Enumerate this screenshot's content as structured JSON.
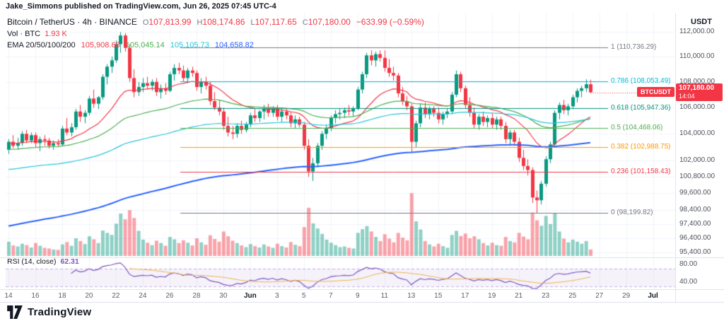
{
  "attribution": "Jake_Simmons published on TradingView.com, Jun 26, 2025 07:45 UTC-4",
  "legend": {
    "title": "Bitcoin / TetherUS · 4h · BINANCE",
    "o_label": "O",
    "o": "107,813.99",
    "h_label": "H",
    "h": "108,174.86",
    "l_label": "L",
    "l": "107,117.65",
    "c_label": "C",
    "c": "107,180.00",
    "change": "−633.99 (−0.59%)",
    "vol_label": "Vol · BTC",
    "vol_value": "1.93 K",
    "ema_label": "EMA 20/50/100/200",
    "ema_values": [
      "105,908.68",
      "105,045.14",
      "105,105.73",
      "104,658.82"
    ],
    "rsi_label": "RSI (14, close)",
    "rsi_value": "62.31"
  },
  "price_scale": {
    "currency": "USDT",
    "badge": {
      "symbol": "BTCUSDT",
      "price": "107,180.00",
      "countdown": "14:04"
    }
  },
  "footer": {
    "brand": "TradingView"
  },
  "colors": {
    "up": "#089981",
    "down": "#f23645",
    "vol_up": "rgba(8,153,129,0.45)",
    "vol_down": "rgba(242,54,69,0.45)",
    "grid": "#f0f3fa",
    "rsi_band": "rgba(126,87,194,0.08)",
    "rsi_band_line": "rgba(126,87,194,0.45)"
  },
  "chart_data": {
    "type": "candlestick",
    "title": "Bitcoin / TetherUS 4h BINANCE with volume, EMA 20/50/100/200, Fibonacci retracement and RSI(14)",
    "interval": "4h",
    "current_price": 107180,
    "current_countdown": "14:04",
    "candles": [
      [
        102800,
        103600,
        102500,
        103400,
        4.2
      ],
      [
        103400,
        103900,
        102900,
        103100,
        3.1
      ],
      [
        103100,
        103700,
        102800,
        103300,
        2.8
      ],
      [
        103300,
        104200,
        103100,
        104000,
        3.6
      ],
      [
        104000,
        104300,
        103300,
        103500,
        3.2
      ],
      [
        103500,
        104100,
        103300,
        103900,
        2.5
      ],
      [
        103900,
        104100,
        103000,
        103300,
        3.8
      ],
      [
        103300,
        103800,
        102700,
        103600,
        3.0
      ],
      [
        103600,
        103900,
        103100,
        103500,
        2.4
      ],
      [
        103500,
        103700,
        102900,
        103100,
        2.2
      ],
      [
        103100,
        103500,
        102800,
        103300,
        1.9
      ],
      [
        103300,
        103600,
        103000,
        103200,
        1.8
      ],
      [
        103200,
        104600,
        103100,
        104400,
        3.4
      ],
      [
        104400,
        105200,
        103900,
        104100,
        4.1
      ],
      [
        104100,
        104800,
        103800,
        104500,
        3.0
      ],
      [
        104500,
        105900,
        104300,
        105700,
        5.2
      ],
      [
        105700,
        106200,
        104900,
        105300,
        4.4
      ],
      [
        105300,
        105800,
        104800,
        105600,
        3.5
      ],
      [
        105600,
        106900,
        105400,
        106700,
        5.8
      ],
      [
        106700,
        107400,
        106000,
        106300,
        4.9
      ],
      [
        106300,
        106900,
        105900,
        106800,
        3.8
      ],
      [
        106800,
        108600,
        106600,
        108400,
        7.5
      ],
      [
        108400,
        109400,
        107800,
        109200,
        6.8
      ],
      [
        109200,
        110000,
        108700,
        109700,
        6.2
      ],
      [
        109700,
        111300,
        109500,
        111000,
        9.5
      ],
      [
        111000,
        111980,
        110300,
        111700,
        12.5
      ],
      [
        111700,
        111900,
        110400,
        110700,
        10.8
      ],
      [
        110700,
        111000,
        108000,
        108300,
        13.5
      ],
      [
        108300,
        109000,
        106800,
        107200,
        11.2
      ],
      [
        107200,
        108000,
        106900,
        107600,
        7.4
      ],
      [
        107600,
        108300,
        107200,
        107900,
        4.8
      ],
      [
        107900,
        108400,
        107400,
        107700,
        3.9
      ],
      [
        107700,
        108200,
        107300,
        108000,
        3.2
      ],
      [
        108000,
        108300,
        106900,
        107200,
        4.5
      ],
      [
        107200,
        107800,
        106700,
        107500,
        3.8
      ],
      [
        107500,
        107900,
        107000,
        107300,
        3.0
      ],
      [
        107300,
        108800,
        107200,
        108600,
        5.6
      ],
      [
        108600,
        109400,
        108100,
        109100,
        4.9
      ],
      [
        109100,
        109500,
        108600,
        108900,
        3.8
      ],
      [
        108900,
        109300,
        108000,
        108300,
        4.6
      ],
      [
        108300,
        109100,
        107900,
        108900,
        3.9
      ],
      [
        108900,
        109200,
        108400,
        108700,
        3.1
      ],
      [
        108700,
        108900,
        107300,
        107600,
        5.2
      ],
      [
        107600,
        108300,
        107100,
        108000,
        4.0
      ],
      [
        108000,
        108400,
        107400,
        107700,
        3.3
      ],
      [
        107700,
        108000,
        106200,
        106500,
        6.1
      ],
      [
        106500,
        107200,
        105800,
        106000,
        5.0
      ],
      [
        106000,
        106600,
        105400,
        105700,
        4.2
      ],
      [
        105700,
        106000,
        104300,
        104600,
        7.2
      ],
      [
        104600,
        105300,
        103800,
        104100,
        5.8
      ],
      [
        104100,
        104600,
        103600,
        104000,
        4.5
      ],
      [
        104000,
        104800,
        103700,
        104600,
        3.8
      ],
      [
        104600,
        105000,
        104000,
        104300,
        3.1
      ],
      [
        104300,
        104900,
        104100,
        104700,
        2.6
      ],
      [
        104700,
        105600,
        104500,
        105400,
        3.5
      ],
      [
        105400,
        105900,
        104900,
        105200,
        2.9
      ],
      [
        105200,
        105800,
        104900,
        105700,
        2.5
      ],
      [
        105700,
        106200,
        105100,
        105900,
        3.4
      ],
      [
        105900,
        106300,
        105300,
        105600,
        2.8
      ],
      [
        105600,
        106100,
        105300,
        105900,
        2.4
      ],
      [
        105900,
        106200,
        105000,
        105300,
        3.6
      ],
      [
        105300,
        105900,
        104900,
        105700,
        2.9
      ],
      [
        105700,
        105900,
        105100,
        105400,
        2.5
      ],
      [
        105400,
        105700,
        104500,
        104800,
        4.1
      ],
      [
        104800,
        105400,
        104400,
        105100,
        3.3
      ],
      [
        105100,
        105300,
        104500,
        104700,
        2.9
      ],
      [
        104700,
        104900,
        102800,
        103100,
        8.5
      ],
      [
        103100,
        103600,
        100800,
        101200,
        14.2
      ],
      [
        101200,
        102200,
        100500,
        101800,
        9.6
      ],
      [
        101800,
        103300,
        101500,
        103100,
        8.1
      ],
      [
        103100,
        104200,
        102800,
        104000,
        6.5
      ],
      [
        104000,
        104700,
        103600,
        104400,
        4.8
      ],
      [
        104400,
        105400,
        104200,
        105200,
        3.9
      ],
      [
        105200,
        105800,
        104800,
        105500,
        3.2
      ],
      [
        105500,
        105900,
        105100,
        105600,
        2.6
      ],
      [
        105600,
        106000,
        105200,
        105800,
        2.8
      ],
      [
        105800,
        106200,
        105400,
        105700,
        2.4
      ],
      [
        105700,
        106100,
        105300,
        105900,
        2.2
      ],
      [
        105900,
        107600,
        105800,
        107400,
        6.8
      ],
      [
        107400,
        108800,
        107100,
        108600,
        7.9
      ],
      [
        108600,
        110300,
        108300,
        110100,
        8.8
      ],
      [
        110100,
        110500,
        109300,
        109700,
        7.2
      ],
      [
        109700,
        110400,
        109200,
        110200,
        5.6
      ],
      [
        110200,
        110500,
        109600,
        109900,
        4.4
      ],
      [
        109900,
        110500,
        108800,
        109100,
        6.4
      ],
      [
        109100,
        109800,
        108400,
        108700,
        5.1
      ],
      [
        108700,
        109200,
        108100,
        108500,
        4.0
      ],
      [
        108500,
        108700,
        106800,
        107100,
        6.8
      ],
      [
        107100,
        107600,
        106200,
        106500,
        5.4
      ],
      [
        106500,
        106900,
        105800,
        106100,
        4.6
      ],
      [
        106100,
        106300,
        102600,
        103400,
        18.5
      ],
      [
        103400,
        105000,
        103000,
        104800,
        10.2
      ],
      [
        104800,
        106300,
        104500,
        106000,
        7.8
      ],
      [
        106000,
        106400,
        105200,
        105500,
        4.4
      ],
      [
        105500,
        106100,
        105100,
        105900,
        3.4
      ],
      [
        105900,
        106100,
        105300,
        105600,
        2.8
      ],
      [
        105600,
        106000,
        104800,
        105100,
        3.6
      ],
      [
        105100,
        105700,
        104700,
        105500,
        2.9
      ],
      [
        105500,
        105900,
        105200,
        105700,
        2.4
      ],
      [
        105700,
        107200,
        105500,
        107000,
        6.2
      ],
      [
        107000,
        108900,
        106800,
        108600,
        7.4
      ],
      [
        108600,
        108800,
        107200,
        107500,
        5.9
      ],
      [
        107500,
        107700,
        105900,
        106200,
        6.6
      ],
      [
        106200,
        106800,
        105300,
        105600,
        5.2
      ],
      [
        105600,
        106000,
        104400,
        104700,
        5.8
      ],
      [
        104700,
        105500,
        104300,
        105300,
        4.9
      ],
      [
        105300,
        105700,
        104600,
        104900,
        3.8
      ],
      [
        104900,
        105400,
        104500,
        105200,
        3.1
      ],
      [
        105200,
        105600,
        104400,
        104700,
        3.9
      ],
      [
        104700,
        105300,
        104300,
        105100,
        3.2
      ],
      [
        105100,
        105300,
        104300,
        104600,
        3.0
      ],
      [
        104600,
        104900,
        103300,
        103600,
        5.6
      ],
      [
        103600,
        104300,
        103100,
        104100,
        4.4
      ],
      [
        104100,
        104300,
        103100,
        103400,
        4.0
      ],
      [
        103400,
        103700,
        101900,
        102200,
        6.8
      ],
      [
        102200,
        102800,
        101300,
        101600,
        5.7
      ],
      [
        101600,
        102100,
        100900,
        101300,
        4.9
      ],
      [
        101300,
        101500,
        98900,
        99300,
        12.8
      ],
      [
        99300,
        99800,
        98200,
        99100,
        10.5
      ],
      [
        99100,
        100500,
        98800,
        100300,
        8.9
      ],
      [
        100300,
        102300,
        100100,
        102100,
        11.8
      ],
      [
        102100,
        103400,
        101800,
        103200,
        9.4
      ],
      [
        103200,
        105800,
        103000,
        105600,
        12.6
      ],
      [
        105600,
        106400,
        105100,
        106200,
        7.2
      ],
      [
        106200,
        106600,
        105500,
        105800,
        5.1
      ],
      [
        105800,
        106300,
        105400,
        106100,
        4.0
      ],
      [
        106100,
        107000,
        105900,
        106800,
        4.8
      ],
      [
        106800,
        107500,
        106400,
        107300,
        4.2
      ],
      [
        107300,
        107700,
        106800,
        107500,
        3.6
      ],
      [
        107500,
        108200,
        107200,
        107814,
        4.4
      ],
      [
        107814,
        108175,
        107118,
        107180,
        1.93
      ]
    ],
    "emas": {
      "periods": [
        20,
        50,
        100,
        200
      ],
      "seeds": [
        103300,
        102800,
        101300,
        97200
      ],
      "colors": [
        "#f23645",
        "#4caf50",
        "#26c6da",
        "#2962ff"
      ]
    },
    "fib": [
      {
        "level": "1",
        "price": 110736.29,
        "label": "1 (110,736.29)",
        "color": "#787b86"
      },
      {
        "level": "0.786",
        "price": 108053.49,
        "label": "0.786 (108,053.49)",
        "color": "#00bcd4"
      },
      {
        "level": "0.618",
        "price": 105947.36,
        "label": "0.618 (105,947.36)",
        "color": "#089981"
      },
      {
        "level": "0.5",
        "price": 104468.06,
        "label": "0.5 (104,468.06)",
        "color": "#4caf50"
      },
      {
        "level": "0.382",
        "price": 102988.75,
        "label": "0.382 (102,988.75)",
        "color": "#ff9800"
      },
      {
        "level": "0.236",
        "price": 101158.43,
        "label": "0.236 (101,158.43)",
        "color": "#f23645"
      },
      {
        "level": "0",
        "price": 98199.82,
        "label": "0 (98,199.82)",
        "color": "#787b86"
      }
    ],
    "price_scale_labels": [
      {
        "text": "112,000.00",
        "value": 112000
      },
      {
        "text": "110,000.00",
        "value": 110000
      },
      {
        "text": "108,000.00",
        "value": 108000
      },
      {
        "text": "106,000.00",
        "value": 106000
      },
      {
        "text": "104,000.00",
        "value": 104000
      },
      {
        "text": "102,000.00",
        "value": 102000
      },
      {
        "text": "100,800.00",
        "value": 100800
      },
      {
        "text": "99,600.00",
        "value": 99600
      },
      {
        "text": "98,400.00",
        "value": 98400
      },
      {
        "text": "97,400.00",
        "value": 97400
      },
      {
        "text": "96,400.00",
        "value": 96400
      },
      {
        "text": "95,400.00",
        "value": 95400
      }
    ],
    "x_ticks": [
      {
        "label": "14",
        "i": 0
      },
      {
        "label": "16",
        "i": 6
      },
      {
        "label": "18",
        "i": 12
      },
      {
        "label": "20",
        "i": 18
      },
      {
        "label": "22",
        "i": 24
      },
      {
        "label": "24",
        "i": 30
      },
      {
        "label": "26",
        "i": 36
      },
      {
        "label": "28",
        "i": 42
      },
      {
        "label": "30",
        "i": 48
      },
      {
        "label": "Jun",
        "i": 54,
        "major": true
      },
      {
        "label": "3",
        "i": 60
      },
      {
        "label": "5",
        "i": 66
      },
      {
        "label": "7",
        "i": 72
      },
      {
        "label": "9",
        "i": 78
      },
      {
        "label": "11",
        "i": 84
      },
      {
        "label": "13",
        "i": 90
      },
      {
        "label": "15",
        "i": 96
      },
      {
        "label": "17",
        "i": 102
      },
      {
        "label": "19",
        "i": 108
      },
      {
        "label": "21",
        "i": 114
      },
      {
        "label": "23",
        "i": 120
      },
      {
        "label": "25",
        "i": 126
      },
      {
        "label": "27",
        "i": 132
      },
      {
        "label": "29",
        "i": 138
      },
      {
        "label": "Jul",
        "i": 144,
        "major": true
      }
    ],
    "rsi": {
      "period": 14,
      "upper": 70,
      "lower": 30,
      "value": "62.31",
      "line_color": "#7e57c2",
      "ma_color": "#f0b24a",
      "scale_labels": [
        {
          "text": "80.00",
          "value": 80
        },
        {
          "text": "40.00",
          "value": 40
        }
      ]
    }
  }
}
